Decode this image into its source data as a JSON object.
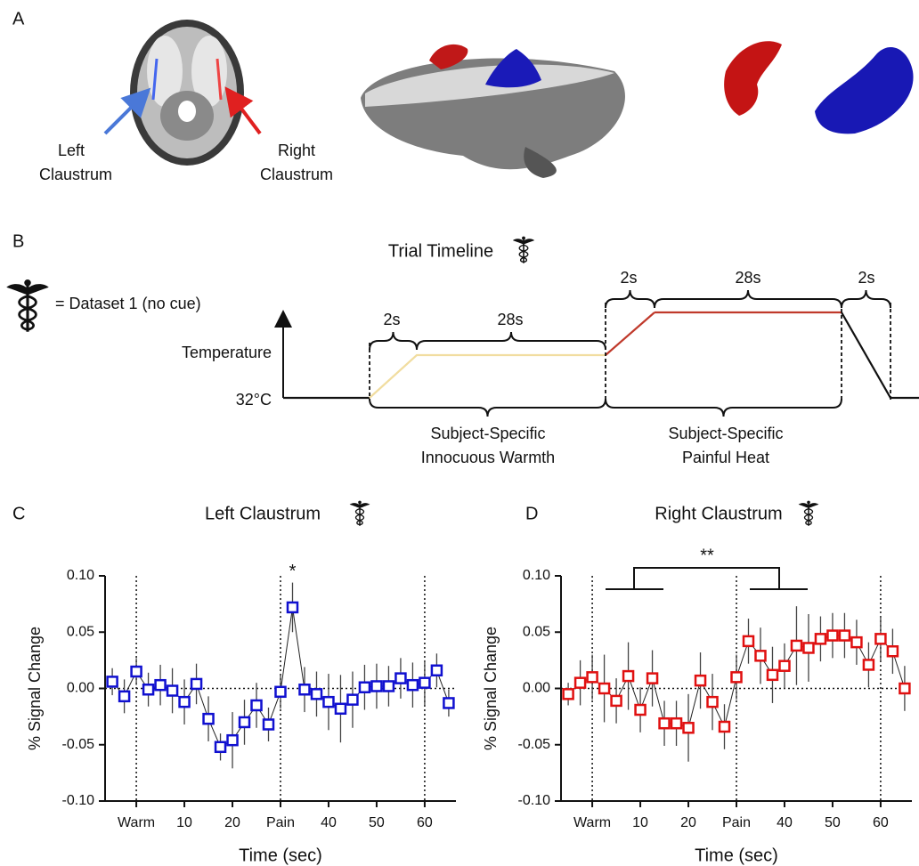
{
  "panel_labels": [
    "A",
    "B",
    "C",
    "D"
  ],
  "panel_a": {
    "left_label": [
      "Left",
      "Claustrum"
    ],
    "right_label": [
      "Right",
      "Claustrum"
    ]
  },
  "panel_b": {
    "title": "Trial Timeline",
    "legend": "= Dataset 1 (no cue)",
    "y_label": "Temperature",
    "baseline": "32°C",
    "durations": [
      "2s",
      "28s",
      "2s",
      "28s",
      "2s"
    ],
    "phases": [
      [
        "Subject-Specific",
        "Innocuous Warmth"
      ],
      [
        "Subject-Specific",
        "Painful Heat"
      ]
    ]
  },
  "chart_data": [
    {
      "type": "line",
      "title": "Left Claustrum",
      "xlabel": "Time (sec)",
      "ylabel": "% Signal Change",
      "annotation": "*",
      "x": [
        -5,
        -2.5,
        0,
        2.5,
        5,
        7.5,
        10,
        12.5,
        15,
        17.5,
        20,
        22.5,
        25,
        27.5,
        30,
        32.5,
        35,
        37.5,
        40,
        42.5,
        45,
        47.5,
        50,
        52.5,
        55,
        57.5,
        60,
        62.5,
        65
      ],
      "series": [
        {
          "color": "#1010d0",
          "values": [
            0.006,
            -0.007,
            0.015,
            -0.001,
            0.003,
            -0.002,
            -0.012,
            0.004,
            -0.027,
            -0.052,
            -0.046,
            -0.03,
            -0.015,
            -0.032,
            -0.003,
            0.072,
            -0.001,
            -0.005,
            -0.012,
            -0.018,
            -0.01,
            0.001,
            0.002,
            0.002,
            0.009,
            0.003,
            0.005,
            0.016,
            -0.013
          ],
          "errors": [
            0.012,
            0.015,
            0.012,
            0.015,
            0.018,
            0.02,
            0.02,
            0.018,
            0.02,
            0.012,
            0.025,
            0.02,
            0.02,
            0.015,
            0.015,
            0.022,
            0.02,
            0.02,
            0.025,
            0.03,
            0.025,
            0.02,
            0.02,
            0.018,
            0.018,
            0.02,
            0.02,
            0.015,
            0.012
          ]
        }
      ],
      "xlim": [
        -6.5,
        66.5
      ],
      "ylim": [
        -0.1,
        0.1
      ],
      "xticks": [
        {
          "value": 0,
          "label": "Warm"
        },
        10,
        20,
        {
          "value": 30,
          "label": "Pain"
        },
        40,
        50,
        60
      ],
      "yticks": [
        {
          "value": 0.1,
          "label": "0.10"
        },
        0.05,
        {
          "value": 0,
          "label": "0.00"
        },
        -0.05,
        {
          "value": -0.1,
          "label": "-0.10"
        }
      ],
      "vlines": [
        0,
        30,
        60
      ],
      "hline": 0
    },
    {
      "type": "line",
      "title": "Right Claustrum",
      "xlabel": "Time (sec)",
      "ylabel": "% Signal Change",
      "annotation": "**",
      "x": [
        -5,
        -2.5,
        0,
        2.5,
        5,
        7.5,
        10,
        12.5,
        15,
        17.5,
        20,
        22.5,
        25,
        27.5,
        30,
        32.5,
        35,
        37.5,
        40,
        42.5,
        45,
        47.5,
        50,
        52.5,
        55,
        57.5,
        60,
        62.5,
        65
      ],
      "series": [
        {
          "color": "#e01010",
          "values": [
            -0.005,
            0.005,
            0.01,
            0.0,
            -0.011,
            0.011,
            -0.019,
            0.009,
            -0.031,
            -0.031,
            -0.035,
            0.007,
            -0.012,
            -0.034,
            0.01,
            0.042,
            0.029,
            0.012,
            0.02,
            0.038,
            0.036,
            0.044,
            0.047,
            0.047,
            0.041,
            0.021,
            0.044,
            0.033,
            0.0
          ],
          "errors": [
            0.01,
            0.02,
            0.02,
            0.03,
            0.02,
            0.03,
            0.02,
            0.025,
            0.02,
            0.02,
            0.03,
            0.025,
            0.025,
            0.02,
            0.02,
            0.02,
            0.025,
            0.025,
            0.02,
            0.035,
            0.03,
            0.02,
            0.02,
            0.02,
            0.02,
            0.02,
            0.02,
            0.02,
            0.02
          ]
        }
      ],
      "xlim": [
        -6.5,
        66.5
      ],
      "ylim": [
        -0.1,
        0.1
      ],
      "xticks": [
        {
          "value": 0,
          "label": "Warm"
        },
        10,
        20,
        {
          "value": 30,
          "label": "Pain"
        },
        40,
        50,
        60
      ],
      "yticks": [
        {
          "value": 0.1,
          "label": "0.10"
        },
        0.05,
        {
          "value": 0,
          "label": "0.00"
        },
        -0.05,
        {
          "value": -0.1,
          "label": "-0.10"
        }
      ],
      "vlines": [
        0,
        30,
        60
      ],
      "hline": 0
    }
  ]
}
